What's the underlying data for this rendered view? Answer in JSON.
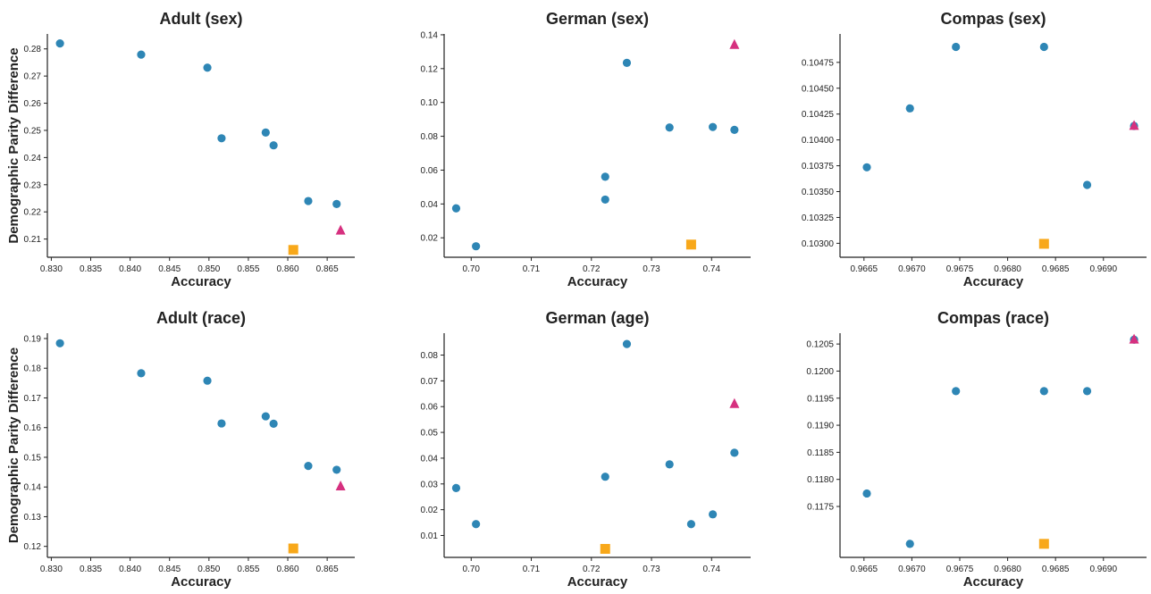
{
  "figure": {
    "ylabel": "Demographic Parity Difference",
    "colors": {
      "circle": "#2e86b5",
      "triangle": "#d6307f",
      "square": "#f8a81a",
      "axis": "#222222",
      "text": "#222222"
    }
  },
  "chart_data": [
    {
      "type": "scatter",
      "title": "Adult (sex)",
      "xlabel": "Accuracy",
      "ylabel": "Demographic Parity Difference",
      "xlim": [
        0.8295,
        0.8685
      ],
      "ylim": [
        0.2033,
        0.2855
      ],
      "xticks": [
        0.83,
        0.835,
        0.84,
        0.845,
        0.85,
        0.855,
        0.86,
        0.865
      ],
      "xtick_labels": [
        "0.830",
        "0.835",
        "0.840",
        "0.845",
        "0.850",
        "0.855",
        "0.860",
        "0.865"
      ],
      "yticks": [
        0.21,
        0.22,
        0.23,
        0.24,
        0.25,
        0.26,
        0.27,
        0.28
      ],
      "ytick_labels": [
        "0.21",
        "0.22",
        "0.23",
        "0.24",
        "0.25",
        "0.26",
        "0.27",
        "0.28"
      ],
      "series": [
        {
          "marker": "circle",
          "color": "#2e86b5",
          "points": [
            [
              0.8311,
              0.282
            ],
            [
              0.8414,
              0.2779
            ],
            [
              0.8498,
              0.2731
            ],
            [
              0.8516,
              0.2471
            ],
            [
              0.8572,
              0.2492
            ],
            [
              0.8582,
              0.2445
            ],
            [
              0.8626,
              0.224
            ],
            [
              0.8662,
              0.2229
            ]
          ]
        },
        {
          "marker": "triangle",
          "color": "#d6307f",
          "points": [
            [
              0.8667,
              0.2131
            ]
          ]
        },
        {
          "marker": "square",
          "color": "#f8a81a",
          "points": [
            [
              0.8607,
              0.206
            ]
          ]
        }
      ]
    },
    {
      "type": "scatter",
      "title": "German (sex)",
      "xlabel": "Accuracy",
      "xlim": [
        0.6955,
        0.7465
      ],
      "ylim": [
        0.0085,
        0.1405
      ],
      "xticks": [
        0.7,
        0.71,
        0.72,
        0.73,
        0.74
      ],
      "xtick_labels": [
        "0.70",
        "0.71",
        "0.72",
        "0.73",
        "0.74"
      ],
      "yticks": [
        0.02,
        0.04,
        0.06,
        0.08,
        0.1,
        0.12,
        0.14
      ],
      "ytick_labels": [
        "0.02",
        "0.04",
        "0.06",
        "0.08",
        "0.10",
        "0.12",
        "0.14"
      ],
      "series": [
        {
          "marker": "circle",
          "color": "#2e86b5",
          "points": [
            [
              0.6975,
              0.0374
            ],
            [
              0.7008,
              0.015
            ],
            [
              0.7223,
              0.0561
            ],
            [
              0.7223,
              0.0426
            ],
            [
              0.7259,
              0.1234
            ],
            [
              0.733,
              0.0852
            ],
            [
              0.7402,
              0.0855
            ],
            [
              0.7438,
              0.0838
            ]
          ]
        },
        {
          "marker": "triangle",
          "color": "#d6307f",
          "points": [
            [
              0.7438,
              0.134
            ]
          ]
        },
        {
          "marker": "square",
          "color": "#f8a81a",
          "points": [
            [
              0.7366,
              0.016
            ]
          ]
        }
      ]
    },
    {
      "type": "scatter",
      "title": "Compas (sex)",
      "xlabel": "Accuracy",
      "xlim": [
        0.96625,
        0.96945
      ],
      "ylim": [
        0.102865,
        0.105025
      ],
      "xticks": [
        0.9665,
        0.967,
        0.9675,
        0.968,
        0.9685,
        0.969
      ],
      "xtick_labels": [
        "0.9665",
        "0.9670",
        "0.9675",
        "0.9680",
        "0.9685",
        "0.9690"
      ],
      "yticks": [
        0.103,
        0.10325,
        0.1035,
        0.10375,
        0.104,
        0.10425,
        0.1045,
        0.10475
      ],
      "ytick_labels": [
        "0.10300",
        "0.10325",
        "0.10350",
        "0.10375",
        "0.10400",
        "0.10425",
        "0.10450",
        "0.10475"
      ],
      "series": [
        {
          "marker": "circle",
          "color": "#2e86b5",
          "points": [
            [
              0.96653,
              0.103735
            ],
            [
              0.96698,
              0.104305
            ],
            [
              0.96746,
              0.1049
            ],
            [
              0.96838,
              0.1049
            ],
            [
              0.96883,
              0.103565
            ],
            [
              0.96932,
              0.104135
            ]
          ]
        },
        {
          "marker": "triangle",
          "color": "#d6307f",
          "points": [
            [
              0.96932,
              0.104135
            ]
          ]
        },
        {
          "marker": "square",
          "color": "#f8a81a",
          "points": [
            [
              0.96838,
              0.102995
            ]
          ]
        }
      ]
    },
    {
      "type": "scatter",
      "title": "Adult (race)",
      "xlabel": "Accuracy",
      "ylabel": "Demographic Parity Difference",
      "xlim": [
        0.8295,
        0.8685
      ],
      "ylim": [
        0.1163,
        0.1918
      ],
      "xticks": [
        0.83,
        0.835,
        0.84,
        0.845,
        0.85,
        0.855,
        0.86,
        0.865
      ],
      "xtick_labels": [
        "0.830",
        "0.835",
        "0.840",
        "0.845",
        "0.850",
        "0.855",
        "0.860",
        "0.865"
      ],
      "yticks": [
        0.12,
        0.13,
        0.14,
        0.15,
        0.16,
        0.17,
        0.18,
        0.19
      ],
      "ytick_labels": [
        "0.12",
        "0.13",
        "0.14",
        "0.15",
        "0.16",
        "0.17",
        "0.18",
        "0.19"
      ],
      "series": [
        {
          "marker": "circle",
          "color": "#2e86b5",
          "points": [
            [
              0.8311,
              0.1884
            ],
            [
              0.8414,
              0.1783
            ],
            [
              0.8498,
              0.1758
            ],
            [
              0.8516,
              0.1614
            ],
            [
              0.8572,
              0.1638
            ],
            [
              0.8582,
              0.1613
            ],
            [
              0.8626,
              0.1471
            ],
            [
              0.8662,
              0.1458
            ]
          ]
        },
        {
          "marker": "triangle",
          "color": "#d6307f",
          "points": [
            [
              0.8667,
              0.1402
            ]
          ]
        },
        {
          "marker": "square",
          "color": "#f8a81a",
          "points": [
            [
              0.8607,
              0.1193
            ]
          ]
        }
      ]
    },
    {
      "type": "scatter",
      "title": "German (age)",
      "xlabel": "Accuracy",
      "xlim": [
        0.6955,
        0.7465
      ],
      "ylim": [
        0.0015,
        0.0885
      ],
      "xticks": [
        0.7,
        0.71,
        0.72,
        0.73,
        0.74
      ],
      "xtick_labels": [
        "0.70",
        "0.71",
        "0.72",
        "0.73",
        "0.74"
      ],
      "yticks": [
        0.01,
        0.02,
        0.03,
        0.04,
        0.05,
        0.06,
        0.07,
        0.08
      ],
      "ytick_labels": [
        "0.01",
        "0.02",
        "0.03",
        "0.04",
        "0.05",
        "0.06",
        "0.07",
        "0.08"
      ],
      "series": [
        {
          "marker": "circle",
          "color": "#2e86b5",
          "points": [
            [
              0.6975,
              0.0284
            ],
            [
              0.7008,
              0.0144
            ],
            [
              0.7223,
              0.0328
            ],
            [
              0.7259,
              0.0843
            ],
            [
              0.733,
              0.0376
            ],
            [
              0.7366,
              0.0144
            ],
            [
              0.7402,
              0.0182
            ],
            [
              0.7438,
              0.0421
            ]
          ]
        },
        {
          "marker": "triangle",
          "color": "#d6307f",
          "points": [
            [
              0.7438,
              0.061
            ]
          ]
        },
        {
          "marker": "square",
          "color": "#f8a81a",
          "points": [
            [
              0.7223,
              0.0048
            ]
          ]
        }
      ]
    },
    {
      "type": "scatter",
      "title": "Compas (race)",
      "xlabel": "Accuracy",
      "xlim": [
        0.96625,
        0.96945
      ],
      "ylim": [
        0.11656,
        0.1207
      ],
      "xticks": [
        0.9665,
        0.967,
        0.9675,
        0.968,
        0.9685,
        0.969
      ],
      "xtick_labels": [
        "0.9665",
        "0.9670",
        "0.9675",
        "0.9680",
        "0.9685",
        "0.9690"
      ],
      "yticks": [
        0.1175,
        0.118,
        0.1185,
        0.119,
        0.1195,
        0.12,
        0.1205
      ],
      "ytick_labels": [
        "0.1175",
        "0.1180",
        "0.1185",
        "0.1190",
        "0.1195",
        "0.1200",
        "0.1205"
      ],
      "series": [
        {
          "marker": "circle",
          "color": "#2e86b5",
          "points": [
            [
              0.96653,
              0.11774
            ],
            [
              0.96698,
              0.11681
            ],
            [
              0.96746,
              0.11963
            ],
            [
              0.96838,
              0.11963
            ],
            [
              0.96883,
              0.11963
            ],
            [
              0.96932,
              0.12058
            ]
          ]
        },
        {
          "marker": "triangle",
          "color": "#d6307f",
          "points": [
            [
              0.96932,
              0.12058
            ]
          ]
        },
        {
          "marker": "square",
          "color": "#f8a81a",
          "points": [
            [
              0.96838,
              0.11681
            ]
          ]
        }
      ]
    }
  ]
}
